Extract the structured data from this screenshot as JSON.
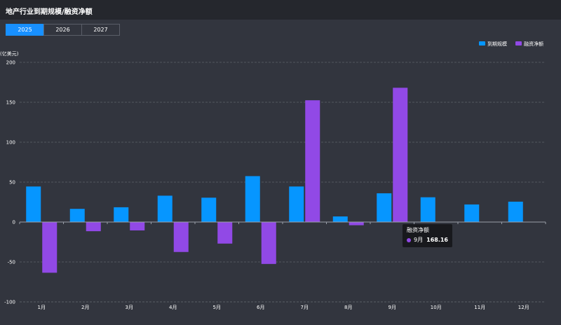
{
  "header": {
    "title": "地产行业到期规模/融资净额"
  },
  "tabs": [
    {
      "label": "2025",
      "active": true
    },
    {
      "label": "2026",
      "active": false
    },
    {
      "label": "2027",
      "active": false
    }
  ],
  "tooltip": {
    "title": "融资净额",
    "month": "9月",
    "value": "168.16",
    "color": "#9149e6"
  },
  "chart_data": {
    "type": "bar",
    "ylabel": "(亿美元)",
    "ylim": [
      -100,
      200
    ],
    "yticks": [
      -100,
      -50,
      0,
      50,
      100,
      150,
      200
    ],
    "grid": true,
    "legend_position": "top-right",
    "categories": [
      "1月",
      "2月",
      "3月",
      "4月",
      "5月",
      "6月",
      "7月",
      "8月",
      "9月",
      "10月",
      "11月",
      "12月"
    ],
    "series": [
      {
        "name": "到期规模",
        "color": "#0696ff",
        "values": [
          44.5,
          16.5,
          18.5,
          33,
          30.5,
          57.5,
          44.5,
          7,
          36,
          31,
          22,
          25.5
        ]
      },
      {
        "name": "融资净额",
        "color": "#9149e6",
        "values": [
          -63.5,
          -11.5,
          -10.5,
          -37.5,
          -27,
          -52.5,
          152.5,
          -4,
          168.16,
          null,
          null,
          null
        ]
      }
    ]
  }
}
